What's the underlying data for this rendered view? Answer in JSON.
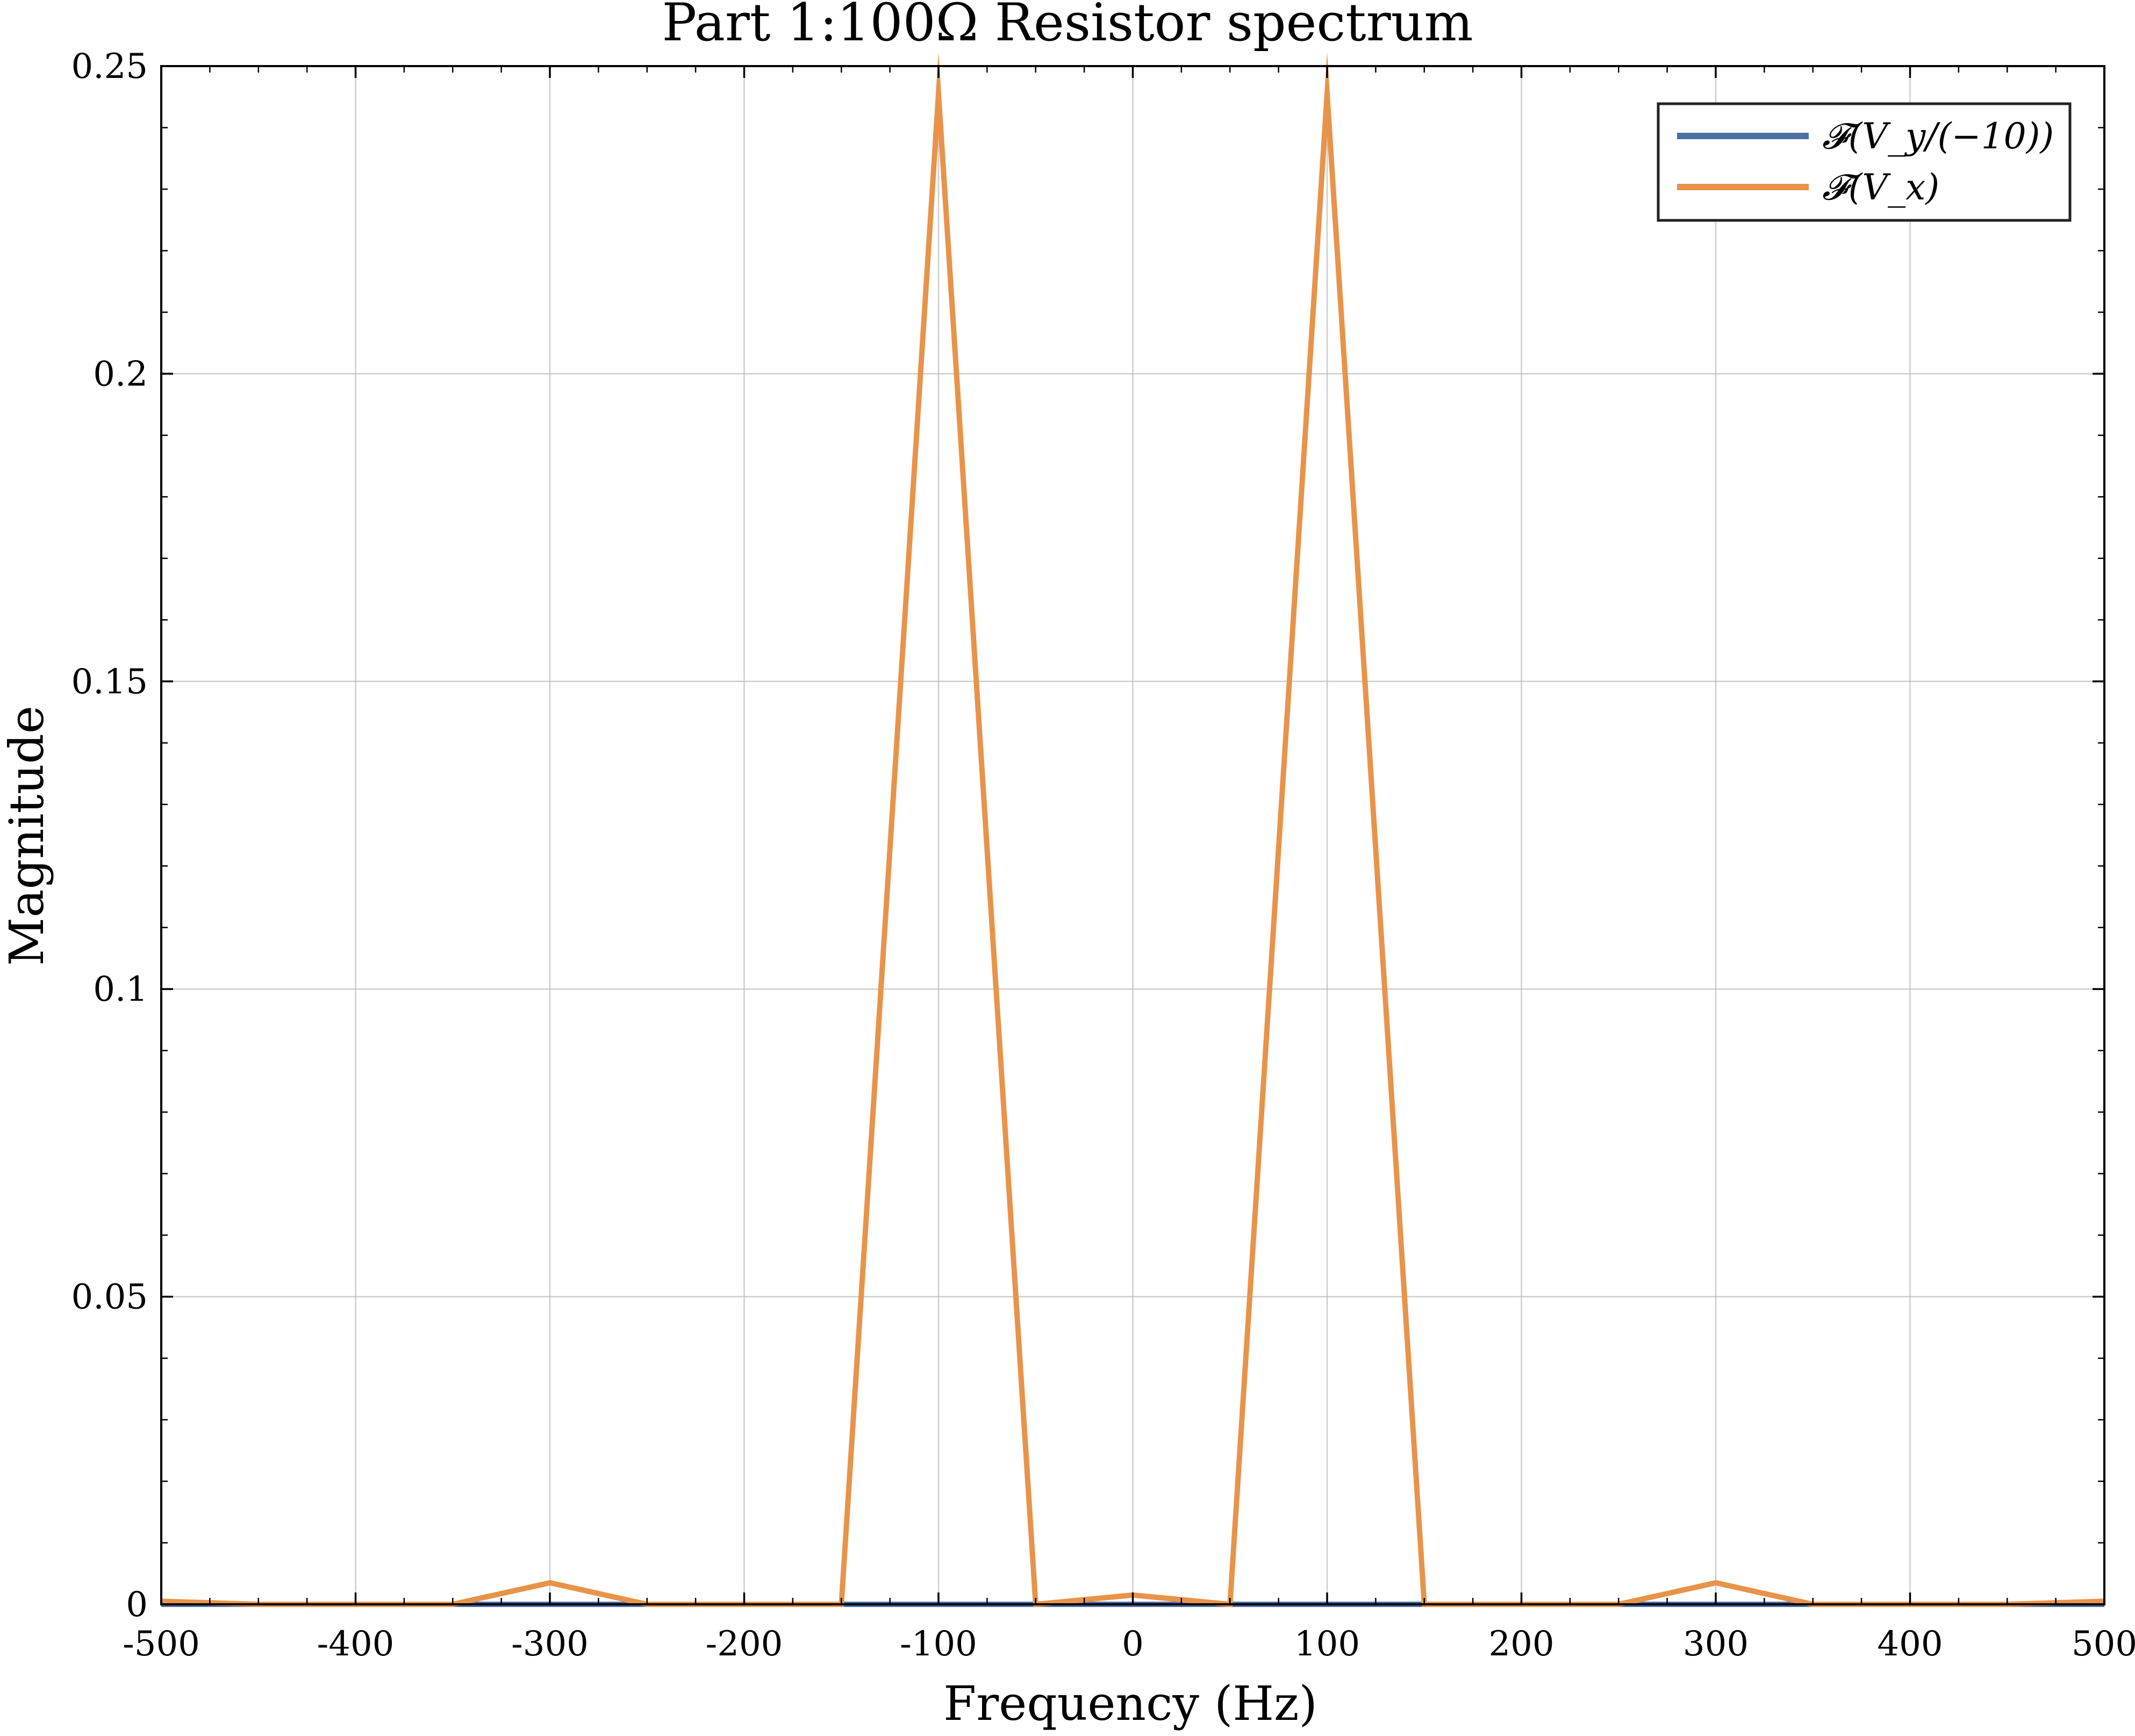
{
  "chart_data": {
    "type": "line",
    "title": "Part 1:100Ω Resistor spectrum",
    "xlabel": "Frequency (Hz)",
    "ylabel": "Magnitude",
    "xlim": [
      -500,
      500
    ],
    "ylim": [
      0,
      0.25
    ],
    "x_ticks": [
      -500,
      -400,
      -300,
      -200,
      -100,
      0,
      100,
      200,
      300,
      400,
      500
    ],
    "x_tick_labels": [
      "-500",
      "-400",
      "-300",
      "-200",
      "-100",
      "0",
      "100",
      "200",
      "300",
      "400",
      "500"
    ],
    "y_ticks": [
      0,
      0.05,
      0.1,
      0.15,
      0.2,
      0.25
    ],
    "y_tick_labels": [
      "0",
      "0.05",
      "0.1",
      "0.15",
      "0.2",
      "0.25"
    ],
    "grid": true,
    "legend_position": "top-right",
    "x": [
      -500,
      -450,
      -400,
      -350,
      -300,
      -250,
      -200,
      -150,
      -100,
      -50,
      0,
      50,
      100,
      150,
      200,
      250,
      300,
      350,
      400,
      450,
      500
    ],
    "series": [
      {
        "name": "𝓕(V_y/(−10))",
        "color": "#4c6fa5",
        "values": [
          0,
          0,
          0,
          0,
          0,
          0,
          0,
          0,
          0,
          0,
          0,
          0,
          0,
          0,
          0,
          0,
          0,
          0,
          0,
          0,
          0
        ]
      },
      {
        "name": "𝓕(V_x)",
        "color": "#e8934a",
        "values": [
          0.0005,
          0,
          0,
          0,
          0.0035,
          0,
          0,
          0,
          0.2455,
          0,
          0.0015,
          0,
          0.2455,
          0,
          0,
          0,
          0.0035,
          0,
          0,
          0,
          0.0005
        ]
      }
    ]
  }
}
